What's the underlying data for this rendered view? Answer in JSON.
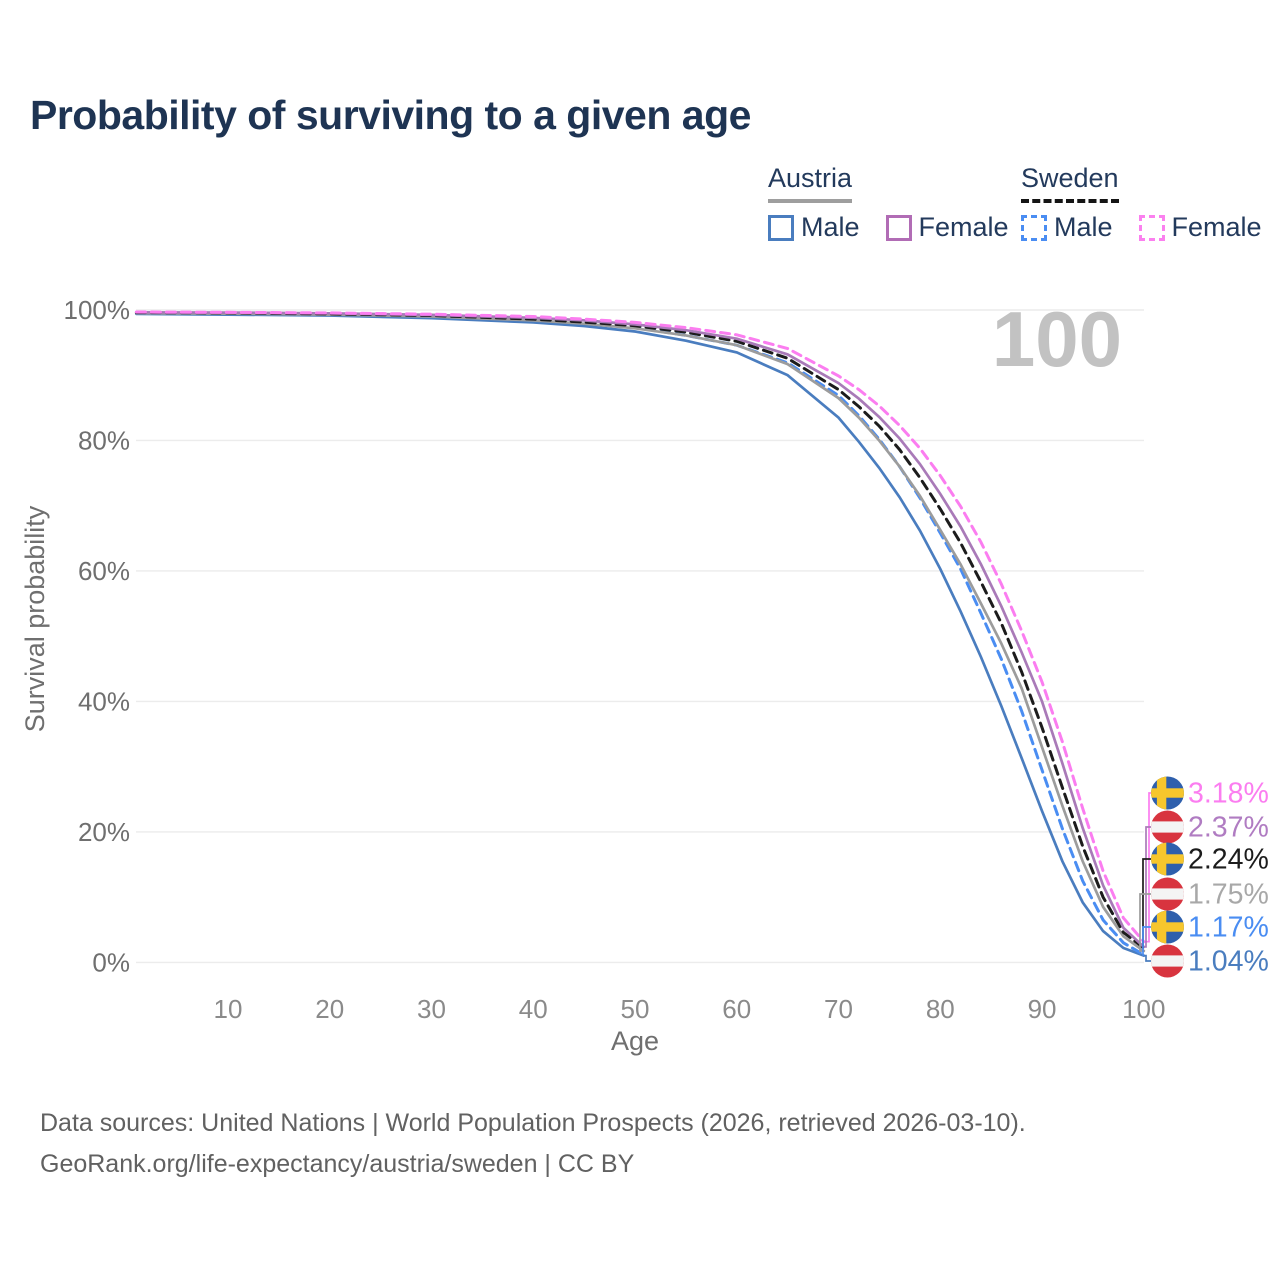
{
  "title": "Probability of surviving to a given age",
  "legend": {
    "austria": {
      "label": "Austria",
      "male": "Male",
      "female": "Female"
    },
    "sweden": {
      "label": "Sweden",
      "male": "Male",
      "female": "Female"
    }
  },
  "watermark": "100",
  "footer": {
    "line1": "Data sources: United Nations | World Population Prospects (2026, retrieved 2026-03-10).",
    "line2": "GeoRank.org/life-expectancy/austria/sweden | CC BY"
  },
  "chart_data": {
    "type": "line",
    "title": "Probability of surviving to a given age",
    "xlabel": "Age",
    "ylabel": "Survival probability",
    "xlim": [
      0,
      100
    ],
    "ylim": [
      0,
      100
    ],
    "grid": "horizontal",
    "legend_position": "top-right",
    "x_ticks": [
      10,
      20,
      30,
      40,
      50,
      60,
      70,
      80,
      90,
      100
    ],
    "y_ticks": [
      {
        "value": 0,
        "label": "0%"
      },
      {
        "value": 20,
        "label": "20%"
      },
      {
        "value": 40,
        "label": "40%"
      },
      {
        "value": 60,
        "label": "60%"
      },
      {
        "value": 80,
        "label": "80%"
      },
      {
        "value": 100,
        "label": "100%"
      }
    ],
    "ages": [
      1,
      10,
      20,
      30,
      40,
      45,
      50,
      55,
      60,
      65,
      70,
      72,
      74,
      76,
      78,
      80,
      82,
      84,
      86,
      88,
      90,
      92,
      94,
      96,
      98,
      100
    ],
    "series": [
      {
        "id": "sweden-female",
        "country": "Sweden",
        "group": "Female",
        "style": "dashed",
        "color": "#fb7df0",
        "label_color": "#fb7df0",
        "flag": "sweden",
        "end_label": "3.18%",
        "end_value": 3.18,
        "values": [
          99.7,
          99.65,
          99.55,
          99.35,
          99.0,
          98.6,
          98.1,
          97.3,
          96.2,
          94.1,
          89.9,
          87.8,
          85.3,
          82.3,
          78.8,
          74.6,
          69.9,
          64.4,
          58.0,
          50.8,
          43.0,
          33.8,
          23.6,
          14.0,
          6.8,
          3.18
        ]
      },
      {
        "id": "austria-female",
        "country": "Austria",
        "group": "Female",
        "style": "solid",
        "color": "#a97ab8",
        "label_color": "#b07cc2",
        "flag": "austria",
        "end_label": "2.37%",
        "end_value": 2.37,
        "values": [
          99.65,
          99.6,
          99.5,
          99.25,
          98.8,
          98.4,
          97.8,
          96.9,
          95.6,
          93.2,
          88.8,
          86.4,
          83.6,
          80.3,
          76.4,
          71.8,
          66.8,
          61.0,
          54.6,
          47.5,
          40.0,
          30.5,
          20.6,
          11.8,
          5.3,
          2.37
        ]
      },
      {
        "id": "sweden-total",
        "country": "Sweden",
        "group": "Total",
        "style": "dashed",
        "color": "#1c1c1c",
        "label_color": "#1c1c1c",
        "flag": "sweden",
        "end_label": "2.24%",
        "end_value": 2.24,
        "values": [
          99.6,
          99.55,
          99.4,
          99.15,
          98.6,
          98.15,
          97.6,
          96.6,
          95.2,
          92.6,
          87.8,
          85.2,
          82.2,
          78.6,
          74.3,
          69.5,
          64.3,
          58.3,
          52.0,
          44.5,
          36.0,
          26.8,
          17.8,
          10.0,
          4.6,
          2.24
        ]
      },
      {
        "id": "austria-total",
        "country": "Austria",
        "group": "Total",
        "style": "solid",
        "color": "#9c9c9c",
        "label_color": "#a8a8a8",
        "flag": "austria",
        "end_label": "1.75%",
        "end_value": 1.75,
        "values": [
          99.5,
          99.45,
          99.3,
          99.0,
          98.4,
          97.9,
          97.2,
          96.1,
          94.6,
          91.7,
          86.5,
          83.5,
          80.0,
          76.0,
          71.5,
          66.3,
          61.0,
          55.0,
          48.9,
          42.0,
          33.0,
          24.0,
          15.5,
          8.5,
          4.0,
          1.75
        ]
      },
      {
        "id": "sweden-male",
        "country": "Sweden",
        "group": "Male",
        "style": "dashed",
        "color": "#4a8df2",
        "label_color": "#4a8df2",
        "flag": "sweden",
        "end_label": "1.17%",
        "end_value": 1.17,
        "values": [
          99.5,
          99.45,
          99.35,
          99.05,
          98.45,
          98.0,
          97.3,
          96.1,
          94.6,
          91.9,
          86.9,
          83.8,
          80.2,
          76.0,
          71.2,
          65.8,
          60.3,
          53.5,
          46.5,
          38.5,
          29.5,
          20.5,
          12.5,
          6.5,
          3.0,
          1.17
        ]
      },
      {
        "id": "austria-male",
        "country": "Austria",
        "group": "Male",
        "style": "solid",
        "color": "#4a7dbf",
        "label_color": "#4a7dbf",
        "flag": "austria",
        "end_label": "1.04%",
        "end_value": 1.04,
        "values": [
          99.4,
          99.3,
          99.15,
          98.75,
          98.1,
          97.55,
          96.7,
          95.3,
          93.5,
          90.0,
          83.5,
          79.8,
          75.8,
          71.3,
          66.2,
          60.3,
          53.8,
          46.8,
          39.3,
          31.3,
          23.2,
          15.5,
          9.2,
          4.8,
          2.2,
          1.04
        ]
      }
    ]
  },
  "colors": {
    "title": "#1e3453",
    "grid": "#ececec",
    "tick_text": "#6f6f6f",
    "watermark": "#c2c2c2",
    "austria_underline": "#9e9e9e",
    "sweden_underline": "#151515",
    "sweden_flag_blue": "#2e5fac",
    "sweden_flag_yellow": "#f6c62d",
    "austria_flag_red": "#d8343f",
    "austria_flag_white": "#f4f4f4"
  }
}
